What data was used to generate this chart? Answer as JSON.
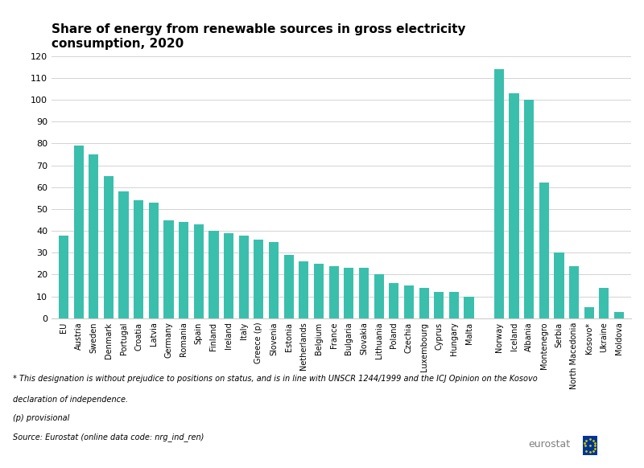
{
  "title": "Share of energy from renewable sources in gross electricity\nconsumption, 2020",
  "bar_color": "#3BBFAD",
  "background_color": "#ffffff",
  "categories": [
    "EU",
    "Austria",
    "Sweden",
    "Denmark",
    "Portugal",
    "Croatia",
    "Latvia",
    "Germany",
    "Romania",
    "Spain",
    "Finland",
    "Ireland",
    "Italy",
    "Greece (p)",
    "Slovenia",
    "Estonia",
    "Netherlands",
    "Belgium",
    "France",
    "Bulgaria",
    "Slovakia",
    "Lithuania",
    "Poland",
    "Czechia",
    "Luxembourg",
    "Cyprus",
    "Hungary",
    "Malta",
    "",
    "Norway",
    "Iceland",
    "Albania",
    "Montenegro",
    "Serbia",
    "North Macedonia",
    "Kosovo*",
    "Ukraine",
    "Moldova"
  ],
  "values": [
    38,
    79,
    75,
    65,
    58,
    54,
    53,
    45,
    44,
    43,
    40,
    39,
    38,
    36,
    35,
    29,
    26,
    25,
    24,
    23,
    23,
    20,
    16,
    15,
    14,
    12,
    12,
    10,
    0,
    114,
    103,
    100,
    62,
    30,
    24,
    5,
    14,
    3
  ],
  "ylim": [
    0,
    120
  ],
  "yticks": [
    0,
    10,
    20,
    30,
    40,
    50,
    60,
    70,
    80,
    90,
    100,
    110,
    120
  ],
  "footnote1": "* This designation is without prejudice to positions on status, and is in line with UNSCR 1244/1999 and the ICJ Opinion on the Kosovo",
  "footnote2": "declaration of independence.",
  "footnote3": "(p) provisional",
  "footnote4": "Source: Eurostat (online data code: nrg_ind_ren)",
  "eurostat_text": "eurostat",
  "title_fontsize": 11,
  "tick_fontsize": 7,
  "ytick_fontsize": 8,
  "footnote_fontsize": 7
}
